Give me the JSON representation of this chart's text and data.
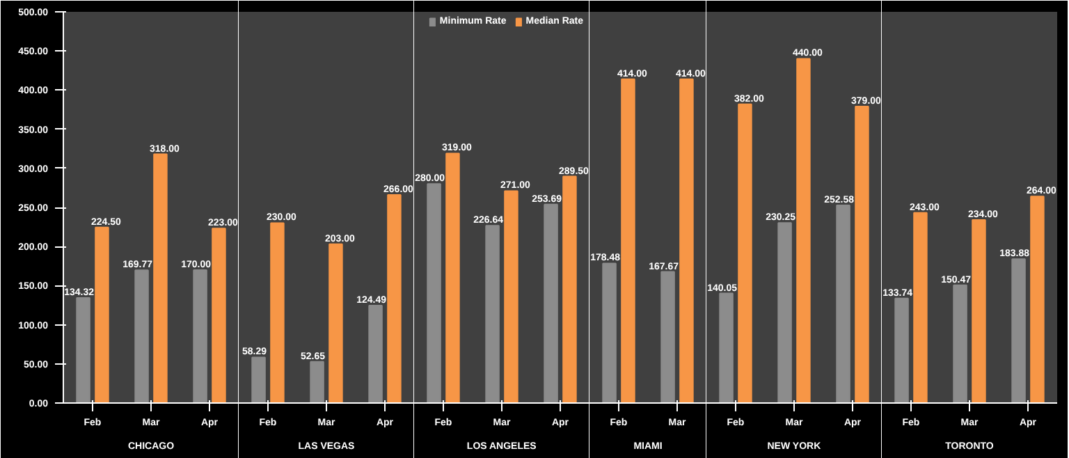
{
  "chart_data": [
    {
      "type": "bar",
      "title": "CHICAGO",
      "categories": [
        "Feb",
        "Mar",
        "Apr"
      ],
      "series": [
        {
          "color": "#8c8c8c",
          "values": [
            134.32,
            169.77,
            170.0
          ],
          "value_labels": [
            "134.32",
            "169.77",
            "170.00"
          ]
        },
        {
          "color": "#f79646",
          "values": [
            224.5,
            318.0,
            223.0
          ],
          "value_labels": [
            "224.50",
            "318.00",
            "223.00"
          ]
        }
      ],
      "ylim": [
        0,
        500
      ],
      "yticks": [
        {
          "value": 0,
          "label": "0.00"
        },
        {
          "value": 50,
          "label": "50.00"
        },
        {
          "value": 100,
          "label": "100.00"
        },
        {
          "value": 150,
          "label": "150.00"
        },
        {
          "value": 200,
          "label": "200.00"
        },
        {
          "value": 250,
          "label": "250.00"
        },
        {
          "value": 300,
          "label": "300.00"
        },
        {
          "value": 350,
          "label": "350.00"
        },
        {
          "value": 400,
          "label": "400.00"
        },
        {
          "value": 450,
          "label": "450.00"
        },
        {
          "value": 500,
          "label": "500.00"
        }
      ]
    },
    {
      "type": "bar",
      "title": "LAS VEGAS",
      "categories": [
        "Feb",
        "Mar",
        "Apr"
      ],
      "series": [
        {
          "color": "#8c8c8c",
          "values": [
            58.29,
            52.65,
            124.49
          ],
          "value_labels": [
            "58.29",
            "52.65",
            "124.49"
          ]
        },
        {
          "color": "#f79646",
          "values": [
            230.0,
            203.0,
            266.0
          ],
          "value_labels": [
            "230.00",
            "203.00",
            "266.00"
          ]
        }
      ],
      "ylim": [
        0,
        500
      ],
      "tick_labels": "x"
    },
    {
      "type": "bar",
      "title": "LOS ANGELES",
      "categories": [
        "Feb",
        "Mar",
        "Apr"
      ],
      "series": [
        {
          "name": "Minimum Rate",
          "color": "#8c8c8c",
          "values": [
            280.0,
            226.64,
            253.69
          ],
          "value_labels": [
            "280.00",
            "226.64",
            "253.69"
          ]
        },
        {
          "name": "Median Rate",
          "color": "#f79646",
          "values": [
            319.0,
            271.0,
            289.5
          ],
          "value_labels": [
            "319.00",
            "271.00",
            "289.50"
          ]
        }
      ],
      "ylim": [
        0,
        500
      ],
      "tick_labels": "x",
      "legend": "top right"
    },
    {
      "type": "bar",
      "title": "MIAMI",
      "categories": [
        "Feb",
        "Mar"
      ],
      "series": [
        {
          "color": "#8c8c8c",
          "values": [
            178.48,
            167.67
          ],
          "value_labels": [
            "178.48",
            "167.67"
          ]
        },
        {
          "color": "#f79646",
          "values": [
            414.0,
            414.0
          ],
          "value_labels": [
            "414.00",
            "414.00"
          ]
        }
      ],
      "ylim": [
        0,
        500
      ],
      "tick_labels": "x"
    },
    {
      "type": "bar",
      "title": "NEW YORK",
      "categories": [
        "Feb",
        "Mar",
        "Apr"
      ],
      "series": [
        {
          "color": "#8c8c8c",
          "values": [
            140.05,
            230.25,
            252.58
          ],
          "value_labels": [
            "140.05",
            "230.25",
            "252.58"
          ]
        },
        {
          "color": "#f79646",
          "values": [
            382.0,
            440.0,
            379.0
          ],
          "value_labels": [
            "382.00",
            "440.00",
            "379.00"
          ]
        }
      ],
      "ylim": [
        0,
        500
      ],
      "tick_labels": "x"
    },
    {
      "type": "bar",
      "title": "TORONTO",
      "categories": [
        "Feb",
        "Mar",
        "Apr"
      ],
      "series": [
        {
          "color": "#8c8c8c",
          "values": [
            133.74,
            150.47,
            183.88
          ],
          "value_labels": [
            "133.74",
            "150.47",
            "183.88"
          ]
        },
        {
          "color": "#f79646",
          "values": [
            243.0,
            234.0,
            264.0
          ],
          "value_labels": [
            "243.00",
            "234.00",
            "264.00"
          ]
        }
      ],
      "ylim": [
        0,
        500
      ],
      "tick_labels": "x"
    }
  ]
}
